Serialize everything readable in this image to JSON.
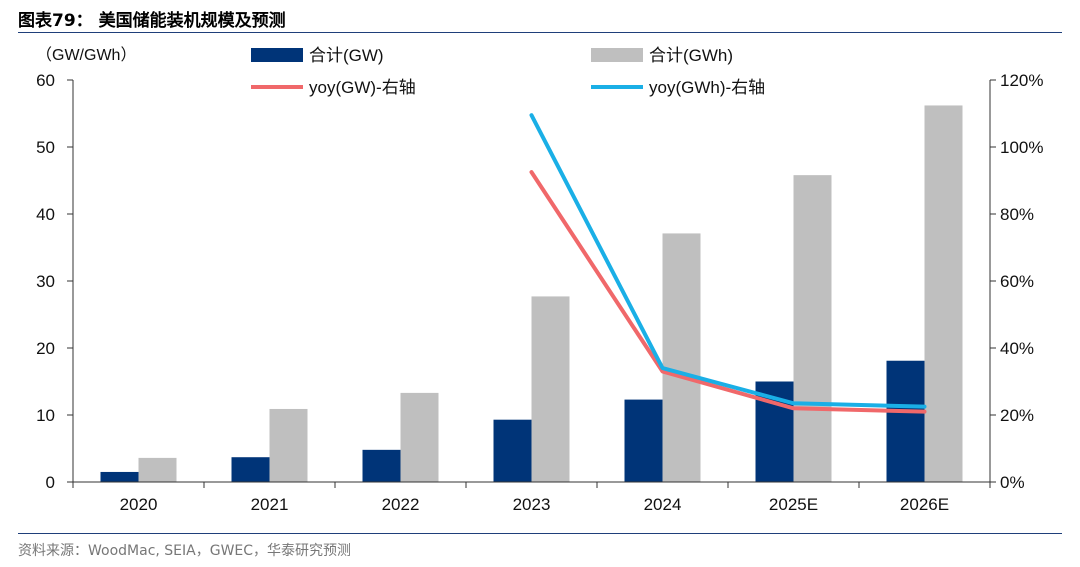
{
  "figure": {
    "title": "图表79：  美国储能装机规模及预测",
    "source": "资料来源：WoodMac, SEIA，GWEC，华泰研究预测"
  },
  "chart_data": {
    "type": "bar",
    "categories": [
      "2020",
      "2021",
      "2022",
      "2023",
      "2024",
      "2025E",
      "2026E"
    ],
    "ylabel": "（GW/GWh）",
    "ylim": [
      0,
      60
    ],
    "yticks": [
      "0",
      "10",
      "20",
      "30",
      "40",
      "50",
      "60"
    ],
    "y2lim": [
      0,
      120
    ],
    "y2ticks": [
      "0%",
      "20%",
      "40%",
      "60%",
      "80%",
      "100%",
      "120%"
    ],
    "grid": false,
    "legend_position": "top",
    "series": [
      {
        "name": "合计(GW)",
        "type": "bar",
        "axis": "left",
        "color": "#003478",
        "values": [
          1.5,
          3.7,
          4.8,
          9.3,
          12.3,
          15.0,
          18.1
        ]
      },
      {
        "name": "合计(GWh)",
        "type": "bar",
        "axis": "left",
        "color": "#bfbfbf",
        "values": [
          3.6,
          10.9,
          13.3,
          27.7,
          37.1,
          45.8,
          56.2
        ]
      },
      {
        "name": "yoy(GW)-右轴",
        "type": "line",
        "axis": "right",
        "color": "#f0686a",
        "values": [
          null,
          null,
          null,
          92.5,
          33.0,
          22.0,
          21.0
        ]
      },
      {
        "name": "yoy(GWh)-右轴",
        "type": "line",
        "axis": "right",
        "color": "#1aafe6",
        "values": [
          null,
          null,
          null,
          109.5,
          34.0,
          23.5,
          22.5
        ]
      }
    ]
  }
}
